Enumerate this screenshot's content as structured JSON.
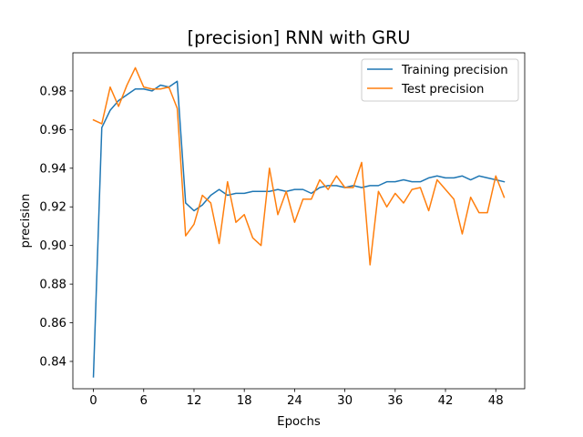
{
  "chart_data": {
    "type": "line",
    "title": "[precision] RNN with GRU",
    "xlabel": "Epochs",
    "ylabel": "precision",
    "xlim": [
      -2.45,
      51.45
    ],
    "ylim": [
      0.82585,
      0.99975
    ],
    "xticks": [
      0,
      6,
      12,
      18,
      24,
      30,
      36,
      42,
      48
    ],
    "yticks": [
      0.84,
      0.86,
      0.88,
      0.9,
      0.92,
      0.94,
      0.96,
      0.98
    ],
    "ytick_labels": [
      "0.84",
      "0.86",
      "0.88",
      "0.90",
      "0.92",
      "0.94",
      "0.96",
      "0.98"
    ],
    "legend_position": "upper right",
    "grid": false,
    "x": [
      0,
      1,
      2,
      3,
      4,
      5,
      6,
      7,
      8,
      9,
      10,
      11,
      12,
      13,
      14,
      15,
      16,
      17,
      18,
      19,
      20,
      21,
      22,
      23,
      24,
      25,
      26,
      27,
      28,
      29,
      30,
      31,
      32,
      33,
      34,
      35,
      36,
      37,
      38,
      39,
      40,
      41,
      42,
      43,
      44,
      45,
      46,
      47,
      48,
      49
    ],
    "series": [
      {
        "name": "Training precision",
        "color": "#1f77b4",
        "values": [
          0.832,
          0.961,
          0.97,
          0.975,
          0.978,
          0.981,
          0.981,
          0.98,
          0.983,
          0.982,
          0.985,
          0.922,
          0.918,
          0.921,
          0.926,
          0.929,
          0.926,
          0.927,
          0.927,
          0.928,
          0.928,
          0.928,
          0.929,
          0.928,
          0.929,
          0.929,
          0.927,
          0.93,
          0.931,
          0.931,
          0.93,
          0.931,
          0.93,
          0.931,
          0.931,
          0.933,
          0.933,
          0.934,
          0.933,
          0.933,
          0.935,
          0.936,
          0.935,
          0.935,
          0.936,
          0.934,
          0.936,
          0.935,
          0.934,
          0.933
        ]
      },
      {
        "name": "Test precision",
        "color": "#ff7f0e",
        "values": [
          0.965,
          0.963,
          0.982,
          0.972,
          0.983,
          0.992,
          0.982,
          0.981,
          0.981,
          0.982,
          0.971,
          0.905,
          0.911,
          0.926,
          0.922,
          0.901,
          0.933,
          0.912,
          0.916,
          0.904,
          0.9,
          0.94,
          0.916,
          0.928,
          0.912,
          0.924,
          0.924,
          0.934,
          0.929,
          0.936,
          0.93,
          0.93,
          0.943,
          0.89,
          0.928,
          0.92,
          0.927,
          0.922,
          0.929,
          0.93,
          0.918,
          0.934,
          0.929,
          0.924,
          0.906,
          0.925,
          0.917,
          0.917,
          0.936,
          0.925
        ]
      }
    ]
  }
}
